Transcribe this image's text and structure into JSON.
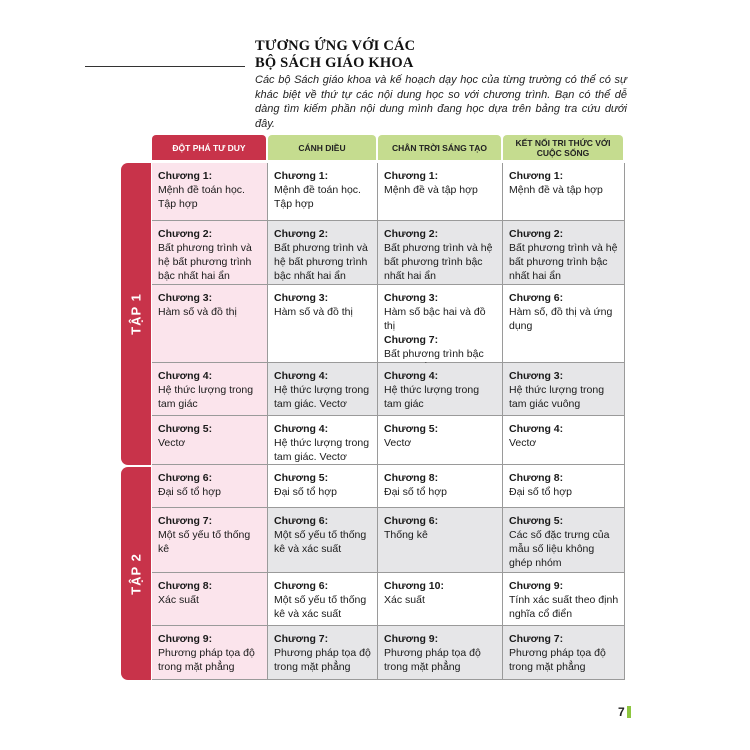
{
  "header": {
    "title_line1": "TƯƠNG ỨNG VỚI CÁC",
    "title_line2": "BỘ SÁCH GIÁO KHOA",
    "intro": "Các bộ Sách giáo khoa và kế hoạch dạy học của từng trường có thể có sự khác biệt về thứ tự các nội dung học so với chương trình. Bạn có thể dễ dàng tìm kiếm phần nội dung mình đang học dựa trên bảng tra cứu dưới đây."
  },
  "table": {
    "columns": [
      "ĐỘT PHÁ TƯ DUY",
      "CÁNH DIỀU",
      "CHÂN TRỜI SÁNG TẠO",
      "KẾT NỐI TRI THỨC VỚI CUỘC SỐNG"
    ],
    "groups": [
      {
        "label": "TẬP 1",
        "rows": [
          [
            [
              {
                "chapter": "Chương 1:",
                "text": "Mệnh đề toán học. Tập hợp"
              }
            ],
            [
              {
                "chapter": "Chương 1:",
                "text": "Mệnh đề toán học. Tập hợp"
              }
            ],
            [
              {
                "chapter": "Chương 1:",
                "text": "Mệnh đề và tập hợp"
              }
            ],
            [
              {
                "chapter": "Chương 1:",
                "text": "Mệnh đề và tập hợp"
              }
            ]
          ],
          [
            [
              {
                "chapter": "Chương 2:",
                "text": "Bất phương trình và hệ bất phương trình bậc nhất hai ẩn"
              }
            ],
            [
              {
                "chapter": "Chương 2:",
                "text": "Bất phương trình và hệ bất phương trình bậc nhất hai ẩn"
              }
            ],
            [
              {
                "chapter": "Chương 2:",
                "text": "Bất phương trình và hệ bất phương trình bậc nhất hai ẩn"
              }
            ],
            [
              {
                "chapter": "Chương 2:",
                "text": "Bất phương trình và hệ bất phương trình bậc nhất hai ẩn"
              }
            ]
          ],
          [
            [
              {
                "chapter": "Chương 3:",
                "text": "Hàm số và đồ thị"
              }
            ],
            [
              {
                "chapter": "Chương 3:",
                "text": "Hàm số và đồ thị"
              }
            ],
            [
              {
                "chapter": "Chương 3:",
                "text": "Hàm số bậc hai và đồ thị"
              },
              {
                "chapter": "Chương 7:",
                "text": "Bất phương trình bậc hai một ẩn"
              }
            ],
            [
              {
                "chapter": "Chương 6:",
                "text": "Hàm số, đồ thị và ứng dụng"
              }
            ]
          ],
          [
            [
              {
                "chapter": "Chương 4:",
                "text": "Hệ thức lượng trong tam giác"
              }
            ],
            [
              {
                "chapter": "Chương 4:",
                "text": "Hệ thức lượng trong tam giác. Vectơ"
              }
            ],
            [
              {
                "chapter": "Chương 4:",
                "text": "Hệ thức lượng trong tam giác"
              }
            ],
            [
              {
                "chapter": "Chương 3:",
                "text": "Hệ thức lượng trong tam giác vuông"
              }
            ]
          ],
          [
            [
              {
                "chapter": "Chương 5:",
                "text": "Vectơ"
              }
            ],
            [
              {
                "chapter": "Chương 4:",
                "text": "Hệ thức lượng trong tam giác. Vectơ"
              }
            ],
            [
              {
                "chapter": "Chương 5:",
                "text": "Vectơ"
              }
            ],
            [
              {
                "chapter": "Chương 4:",
                "text": "Vectơ"
              }
            ]
          ]
        ]
      },
      {
        "label": "TẬP 2",
        "rows": [
          [
            [
              {
                "chapter": "Chương 6:",
                "text": "Đại số tổ hợp"
              }
            ],
            [
              {
                "chapter": "Chương 5:",
                "text": "Đại số tổ hợp"
              }
            ],
            [
              {
                "chapter": "Chương 8:",
                "text": "Đại số tổ hợp"
              }
            ],
            [
              {
                "chapter": "Chương 8:",
                "text": "Đại số tổ hợp"
              }
            ]
          ],
          [
            [
              {
                "chapter": "Chương 7:",
                "text": "Một số yếu tố thống kê"
              }
            ],
            [
              {
                "chapter": "Chương 6:",
                "text": "Một số yếu tố thống kê và xác suất"
              }
            ],
            [
              {
                "chapter": "Chương 6:",
                "text": "Thống kê"
              }
            ],
            [
              {
                "chapter": "Chương 5:",
                "text": "Các số đặc trưng của mẫu số liệu không ghép nhóm"
              }
            ]
          ],
          [
            [
              {
                "chapter": "Chương 8:",
                "text": "Xác suất"
              }
            ],
            [
              {
                "chapter": "Chương 6:",
                "text": "Một số yếu tố thống kê và xác suất"
              }
            ],
            [
              {
                "chapter": "Chương 10:",
                "text": "Xác suất"
              }
            ],
            [
              {
                "chapter": "Chương 9:",
                "text": "Tính xác suất theo định nghĩa cổ điển"
              }
            ]
          ],
          [
            [
              {
                "chapter": "Chương 9:",
                "text": "Phương pháp tọa độ trong mặt phẳng"
              }
            ],
            [
              {
                "chapter": "Chương 7:",
                "text": "Phương pháp tọa độ trong mặt phẳng"
              }
            ],
            [
              {
                "chapter": "Chương 9:",
                "text": "Phương pháp tọa độ trong mặt phẳng"
              }
            ],
            [
              {
                "chapter": "Chương 7:",
                "text": "Phương pháp tọa độ trong mặt phẳng"
              }
            ]
          ]
        ]
      }
    ]
  },
  "page_number": "7"
}
